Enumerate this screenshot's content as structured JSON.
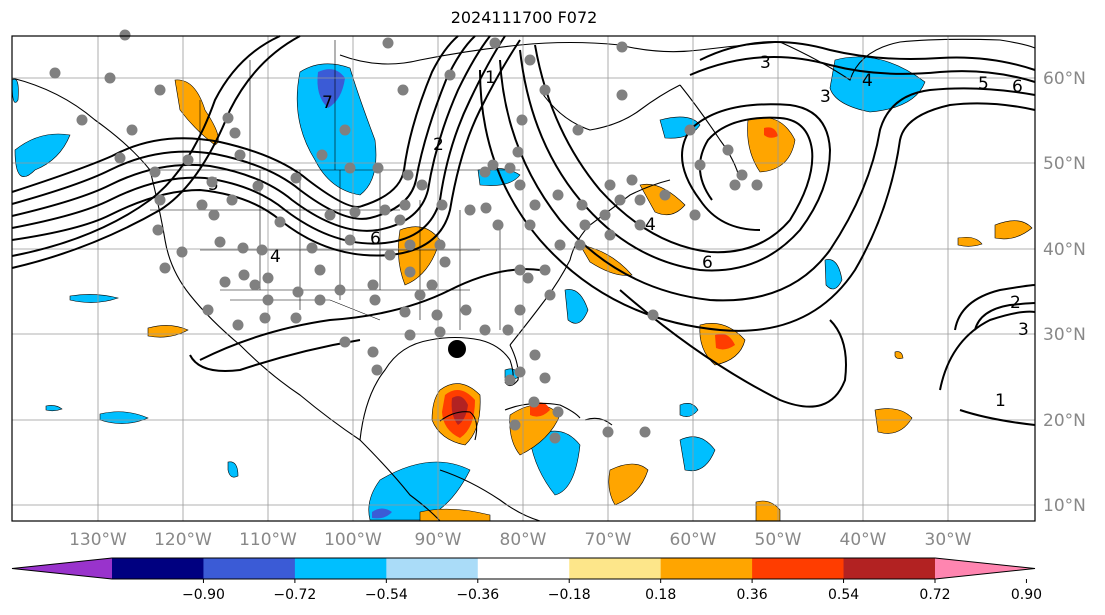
{
  "title": "2024111700 F072",
  "map": {
    "grid_on": true,
    "lat_labels": [
      "60°N",
      "50°N",
      "40°N",
      "30°N",
      "20°N",
      "10°N"
    ],
    "lon_labels": [
      "130°W",
      "120°W",
      "110°W",
      "100°W",
      "90°W",
      "80°W",
      "70°W",
      "60°W",
      "50°W",
      "40°W",
      "30°W"
    ],
    "contour_labels": [
      "1",
      "2",
      "3",
      "4",
      "5",
      "6",
      "7",
      "6",
      "5",
      "4",
      "3",
      "6",
      "4",
      "1",
      "2",
      "3"
    ],
    "marker": {
      "symbol": "large-black-dot",
      "lon": -87.5,
      "lat": 28.2
    },
    "station_points": "grey dots"
  },
  "colorbar": {
    "ticks": [
      "−0.90",
      "−0.72",
      "−0.54",
      "−0.36",
      "−0.18",
      "0.18",
      "0.36",
      "0.54",
      "0.72",
      "0.90"
    ],
    "colors": [
      "#9933cc",
      "#000080",
      "#3b5bd6",
      "#00bfff",
      "#aadcf8",
      "#ffffff",
      "#fde68a",
      "#ffa500",
      "#ff3d00",
      "#b22222",
      "#ff85b0"
    ],
    "extend": "both"
  }
}
